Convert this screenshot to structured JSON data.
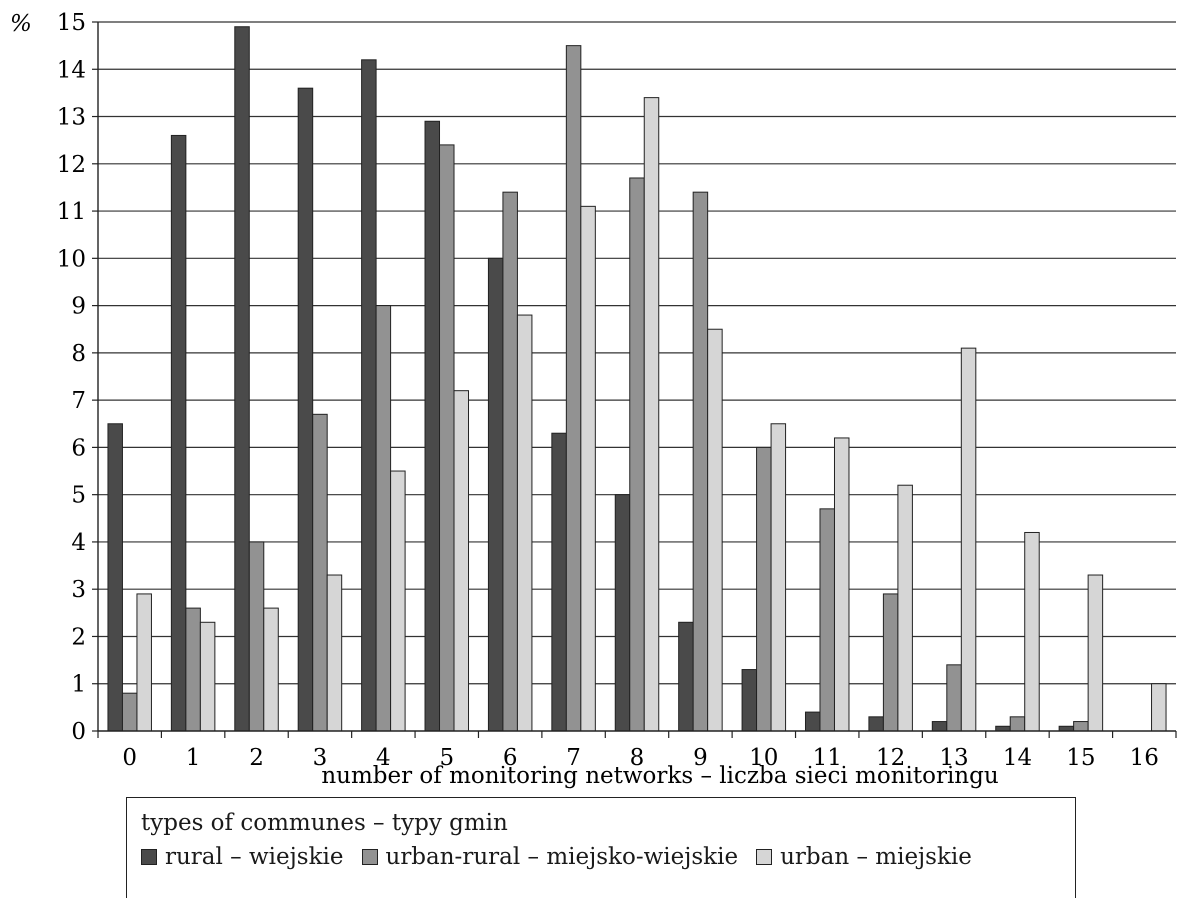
{
  "chart_data": {
    "type": "bar",
    "title": "",
    "ylabel": "%",
    "xlabel": "number of monitoring networks – liczba sieci monitoringu",
    "ylim": [
      0,
      15
    ],
    "yticks": [
      "0",
      "1",
      "2",
      "3",
      "4",
      "5",
      "6",
      "7",
      "8",
      "9",
      "10",
      "11",
      "12",
      "13",
      "14",
      "15"
    ],
    "categories": [
      "0",
      "1",
      "2",
      "3",
      "4",
      "5",
      "6",
      "7",
      "8",
      "9",
      "10",
      "11",
      "12",
      "13",
      "14",
      "15",
      "16"
    ],
    "grid": true,
    "legend_position": "bottom",
    "legend_title": "types of communes – typy gmin",
    "series": [
      {
        "name": "rural – wiejskie",
        "color": "#4a4a4a",
        "values": [
          6.5,
          12.6,
          14.9,
          13.6,
          14.2,
          12.9,
          10.0,
          6.3,
          5.0,
          2.3,
          1.3,
          0.4,
          0.3,
          0.2,
          0.1,
          0.1,
          0.0
        ]
      },
      {
        "name": "urban-rural – miejsko-wiejskie",
        "color": "#929292",
        "values": [
          0.8,
          2.6,
          4.0,
          6.7,
          9.0,
          12.4,
          11.4,
          14.5,
          11.7,
          11.4,
          6.0,
          4.7,
          2.9,
          1.4,
          0.3,
          0.2,
          0.0
        ]
      },
      {
        "name": "urban – miejskie",
        "color": "#d6d6d6",
        "values": [
          2.9,
          2.3,
          2.6,
          3.3,
          5.5,
          7.2,
          8.8,
          11.1,
          13.4,
          8.5,
          6.5,
          6.2,
          5.2,
          8.1,
          4.2,
          3.3,
          1.0
        ]
      }
    ]
  }
}
